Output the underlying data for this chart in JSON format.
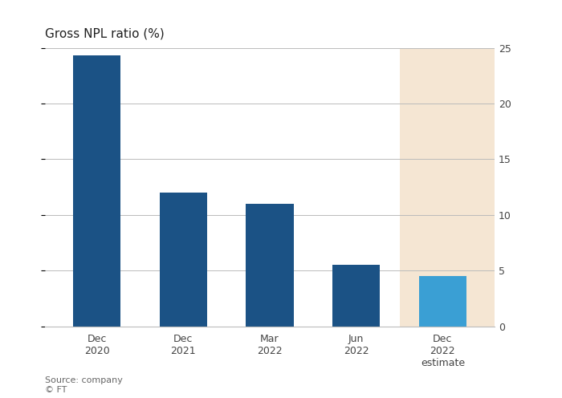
{
  "categories": [
    "Dec\n2020",
    "Dec\n2021",
    "Mar\n2022",
    "Jun\n2022",
    "Dec\n2022\nestimate"
  ],
  "values": [
    24.3,
    12.0,
    11.0,
    5.5,
    4.5
  ],
  "bar_colors": [
    "#1b5285",
    "#1b5285",
    "#1b5285",
    "#1b5285",
    "#3a9fd4"
  ],
  "estimate_bg_color": "#f5e6d3",
  "title": "Gross NPL ratio (%)",
  "ylim": [
    0,
    25
  ],
  "yticks": [
    0,
    5,
    10,
    15,
    20,
    25
  ],
  "source_text": "Source: company\n© FT",
  "background_color": "#ffffff",
  "estimate_index": 4,
  "grid_color": "#bbbbbb",
  "title_fontsize": 11,
  "tick_fontsize": 9,
  "source_fontsize": 8
}
